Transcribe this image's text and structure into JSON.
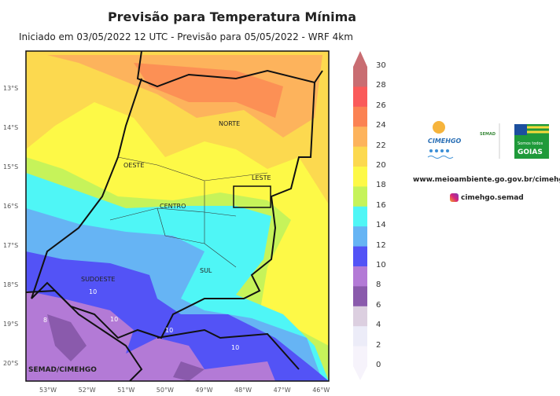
{
  "title": "Previsão para Temperatura Mínima",
  "subtitle": "Iniciado em 03/05/2022 12 UTC - Previsão para 05/05/2022 - WRF 4km",
  "map": {
    "lat_labels": [
      "13°S",
      "14°S",
      "15°S",
      "16°S",
      "17°S",
      "18°S",
      "19°S",
      "20°S"
    ],
    "lon_labels": [
      "53°W",
      "52°W",
      "51°W",
      "50°W",
      "49°W",
      "48°W",
      "47°W",
      "46°W"
    ],
    "regions": [
      "NORTE",
      "OESTE",
      "LESTE",
      "CENTRO",
      "SUL",
      "SUDOESTE"
    ],
    "contour_label": "10",
    "contour_label_8": "8",
    "watermark": "SEMAD/CIMEHGO"
  },
  "colorbar": {
    "ticks": [
      "30",
      "28",
      "26",
      "24",
      "22",
      "20",
      "18",
      "16",
      "14",
      "12",
      "10",
      "8",
      "6",
      "4",
      "2",
      "0"
    ],
    "colors": [
      "#c96d72",
      "#fa5a5a",
      "#fb8253",
      "#fdb35c",
      "#fcd94f",
      "#fdf947",
      "#c6f35a",
      "#4ff6f6",
      "#66b4f4",
      "#5353f6",
      "#b37ad6",
      "#8a5aac",
      "#dccfe0",
      "#ececf8",
      "#f6f3fb"
    ]
  },
  "logos": {
    "cimehgo": "CIMEHGO",
    "semad": "SEMAD",
    "goias": "GOIAS",
    "goias_tag": "Somos todos"
  },
  "links": {
    "url": "www.meioambiente.go.gov.br/cimehgo",
    "instagram": "cimehgo.semad"
  }
}
